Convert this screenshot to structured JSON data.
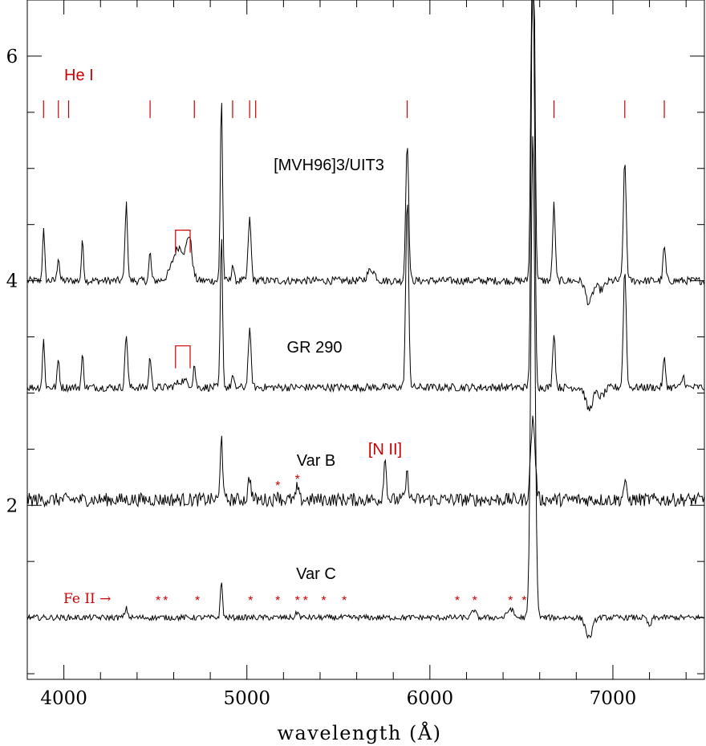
{
  "chart_data": {
    "type": "line",
    "xlabel": "wavelength (Å)",
    "ylabel": "",
    "xlim": [
      3800,
      7500
    ],
    "ylim": [
      0.45,
      6.5
    ],
    "x_ticks": [
      4000,
      5000,
      6000,
      7000
    ],
    "y_ticks": [
      2,
      4,
      6
    ],
    "grid": false,
    "colors": {
      "spectrum": "#000000",
      "annotation": "#cc0000"
    },
    "series": [
      {
        "name": "[MVH96]3/UIT3",
        "baseline": 4.0,
        "lines": [
          {
            "center": 3889,
            "height": 0.45,
            "width": 6
          },
          {
            "center": 3970,
            "height": 0.22,
            "width": 6
          },
          {
            "center": 4102,
            "height": 0.35,
            "width": 6
          },
          {
            "center": 4341,
            "height": 0.68,
            "width": 7
          },
          {
            "center": 4471,
            "height": 0.25,
            "width": 6
          },
          {
            "center": 4630,
            "height": 0.3,
            "width": 35
          },
          {
            "center": 4686,
            "height": 0.32,
            "width": 14
          },
          {
            "center": 4861,
            "height": 1.65,
            "width": 6
          },
          {
            "center": 4922,
            "height": 0.15,
            "width": 6
          },
          {
            "center": 5015,
            "height": 0.55,
            "width": 8
          },
          {
            "center": 5680,
            "height": 0.1,
            "width": 20
          },
          {
            "center": 5876,
            "height": 1.25,
            "width": 8
          },
          {
            "center": 6563,
            "height": 4.0,
            "width": 9
          },
          {
            "center": 6678,
            "height": 0.68,
            "width": 7
          },
          {
            "center": 7065,
            "height": 1.05,
            "width": 8
          },
          {
            "center": 7281,
            "height": 0.3,
            "width": 7
          },
          {
            "center": 6870,
            "height": -0.2,
            "width": 18
          },
          {
            "center": 6935,
            "height": -0.08,
            "width": 20
          }
        ]
      },
      {
        "name": "GR 290",
        "baseline": 3.05,
        "lines": [
          {
            "center": 3889,
            "height": 0.42,
            "width": 6
          },
          {
            "center": 3970,
            "height": 0.25,
            "width": 6
          },
          {
            "center": 4102,
            "height": 0.28,
            "width": 6
          },
          {
            "center": 4341,
            "height": 0.48,
            "width": 7
          },
          {
            "center": 4471,
            "height": 0.28,
            "width": 6
          },
          {
            "center": 4650,
            "height": 0.06,
            "width": 30
          },
          {
            "center": 4713,
            "height": 0.2,
            "width": 6
          },
          {
            "center": 4861,
            "height": 1.35,
            "width": 6
          },
          {
            "center": 4922,
            "height": 0.1,
            "width": 6
          },
          {
            "center": 5015,
            "height": 0.5,
            "width": 8
          },
          {
            "center": 5876,
            "height": 1.65,
            "width": 8
          },
          {
            "center": 6563,
            "height": 4.0,
            "width": 9
          },
          {
            "center": 6678,
            "height": 0.5,
            "width": 7
          },
          {
            "center": 7065,
            "height": 1.05,
            "width": 8
          },
          {
            "center": 7281,
            "height": 0.25,
            "width": 7
          },
          {
            "center": 7385,
            "height": 0.1,
            "width": 8
          },
          {
            "center": 6870,
            "height": -0.2,
            "width": 18
          },
          {
            "center": 6935,
            "height": -0.08,
            "width": 20
          }
        ]
      },
      {
        "name": "Var B",
        "baseline": 2.05,
        "lines": [
          {
            "center": 4861,
            "height": 0.62,
            "width": 6
          },
          {
            "center": 5015,
            "height": 0.2,
            "width": 8
          },
          {
            "center": 5169,
            "height": 0.08,
            "width": 6
          },
          {
            "center": 5276,
            "height": 0.12,
            "width": 6
          },
          {
            "center": 5755,
            "height": 0.35,
            "width": 8
          },
          {
            "center": 5876,
            "height": 0.22,
            "width": 8
          },
          {
            "center": 6563,
            "height": 0.72,
            "width": 12
          },
          {
            "center": 7065,
            "height": 0.15,
            "width": 8
          }
        ]
      },
      {
        "name": "Var C",
        "baseline": 1.0,
        "lines": [
          {
            "center": 4341,
            "height": 0.08,
            "width": 8
          },
          {
            "center": 4861,
            "height": 0.32,
            "width": 6
          },
          {
            "center": 5276,
            "height": 0.05,
            "width": 8
          },
          {
            "center": 6240,
            "height": 0.07,
            "width": 10
          },
          {
            "center": 6440,
            "height": 0.08,
            "width": 15
          },
          {
            "center": 6563,
            "height": 4.3,
            "width": 11
          },
          {
            "center": 6870,
            "height": -0.18,
            "width": 18
          },
          {
            "center": 7200,
            "height": -0.08,
            "width": 10
          }
        ]
      }
    ],
    "he1_marks": [
      3889,
      3970,
      4026,
      4471,
      4713,
      4922,
      5015,
      5048,
      5876,
      6678,
      7065,
      7281
    ],
    "heii_brackets": [
      {
        "x1": 4610,
        "x2": 4690,
        "y_bottom": 4.25,
        "y_top": 4.45
      },
      {
        "x1": 4610,
        "x2": 4690,
        "y_bottom": 3.22,
        "y_top": 3.42
      }
    ],
    "feii_asterisks": [
      4515,
      4555,
      4730,
      5020,
      5169,
      5276,
      5320,
      5420,
      5532,
      6150,
      6245,
      6440,
      6515
    ],
    "varb_asterisks": [
      5169,
      5276
    ],
    "labels": {
      "he1": "He I",
      "nii": "[N II]",
      "feii": "Fe II →",
      "star": "*"
    }
  }
}
